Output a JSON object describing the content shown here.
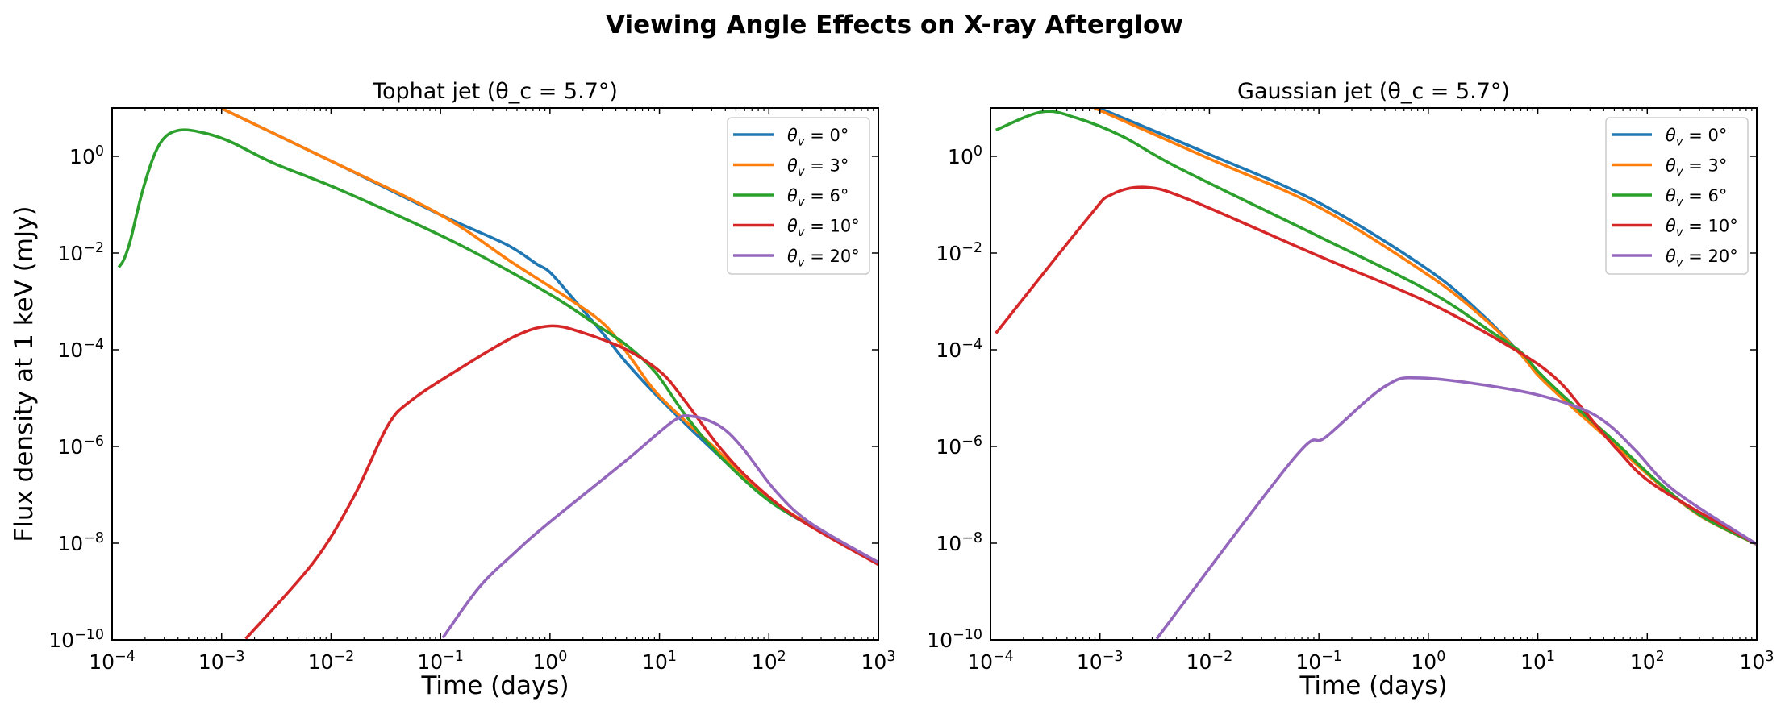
{
  "figure": {
    "title": "Viewing Angle Effects on X-ray Afterglow"
  },
  "chart_data": [
    {
      "type": "line",
      "title": "Tophat jet (θ_c = 5.7°)",
      "xlabel": "Time (days)",
      "ylabel": "Flux density at 1 keV (mJy)",
      "xscale": "log",
      "yscale": "log",
      "xlim": [
        0.0001,
        1000.0
      ],
      "ylim": [
        1e-10,
        10.0
      ],
      "x_tick_exponents": [
        -4,
        -3,
        -2,
        -1,
        0,
        1,
        2,
        3
      ],
      "y_tick_exponents": [
        -10,
        -8,
        -6,
        -4,
        -2,
        0
      ],
      "grid": false,
      "legend_position": "top-right",
      "series": [
        {
          "name": "θ_v = 0°",
          "color": "#1f77b4",
          "points": [
            [
              0.001,
              9.8
            ],
            [
              0.01,
              0.8
            ],
            [
              0.1,
              0.062
            ],
            [
              0.4,
              0.015
            ],
            [
              0.75,
              0.006
            ],
            [
              1.0,
              0.004
            ],
            [
              1.55,
              0.0013
            ],
            [
              3.2,
              0.00019
            ],
            [
              5.1,
              5.1e-05
            ],
            [
              10.5,
              8.9e-06
            ],
            [
              31,
              8.3e-07
            ],
            [
              100,
              7.6e-08
            ],
            [
              340,
              1.5e-08
            ],
            [
              1000,
              4e-09
            ]
          ]
        },
        {
          "name": "θ_v = 3°",
          "color": "#ff7f0e",
          "points": [
            [
              0.001,
              9.8
            ],
            [
              0.01,
              0.8
            ],
            [
              0.1,
              0.062
            ],
            [
              0.47,
              0.006
            ],
            [
              1.55,
              0.00107
            ],
            [
              3.2,
              0.00032
            ],
            [
              5.6,
              6.3e-05
            ],
            [
              10,
              1.1e-05
            ],
            [
              31,
              1e-06
            ],
            [
              100,
              8.5e-08
            ],
            [
              340,
              1.5e-08
            ],
            [
              1000,
              4e-09
            ]
          ]
        },
        {
          "name": "θ_v = 6°",
          "color": "#2ca02c",
          "points": [
            [
              0.000115,
              0.0051
            ],
            [
              0.000126,
              0.0068
            ],
            [
              0.000138,
              0.0115
            ],
            [
              0.00015,
              0.022
            ],
            [
              0.00019,
              0.195
            ],
            [
              0.000245,
              1.12
            ],
            [
              0.00031,
              2.6
            ],
            [
              0.00042,
              3.5
            ],
            [
              0.00063,
              3.2
            ],
            [
              0.00115,
              2.1
            ],
            [
              0.003,
              0.72
            ],
            [
              0.0126,
              0.195
            ],
            [
              0.14,
              0.016
            ],
            [
              0.95,
              0.0015
            ],
            [
              2.5,
              0.00036
            ],
            [
              5.1,
              0.00012
            ],
            [
              9.3,
              3.3e-05
            ],
            [
              17,
              4.7e-06
            ],
            [
              35,
              6.6e-07
            ],
            [
              100,
              7.6e-08
            ],
            [
              340,
              1.5e-08
            ],
            [
              1000,
              4e-09
            ]
          ]
        },
        {
          "name": "θ_v = 10°",
          "color": "#d62728",
          "points": [
            [
              0.00166,
              1.05e-10
            ],
            [
              0.0069,
              4e-09
            ],
            [
              0.0162,
              9.3e-08
            ],
            [
              0.033,
              2.7e-06
            ],
            [
              0.054,
              8.9e-06
            ],
            [
              0.14,
              3.7e-05
            ],
            [
              0.47,
              0.000186
            ],
            [
              1.0,
              0.00031
            ],
            [
              1.95,
              0.00023
            ],
            [
              5.1,
              9.8e-05
            ],
            [
              10.5,
              3.3e-05
            ],
            [
              17,
              8.9e-06
            ],
            [
              35,
              1e-06
            ],
            [
              71,
              1.8e-07
            ],
            [
              186,
              3.2e-08
            ],
            [
              1000,
              3.6e-09
            ]
          ]
        },
        {
          "name": "θ_v = 20°",
          "color": "#9467bd",
          "points": [
            [
              0.105,
              1.1e-10
            ],
            [
              0.224,
              1.2e-09
            ],
            [
              0.47,
              6.2e-09
            ],
            [
              0.95,
              2.5e-08
            ],
            [
              5.1,
              5.4e-07
            ],
            [
              13.5,
              3.4e-06
            ],
            [
              20,
              4.2e-06
            ],
            [
              35,
              2.7e-06
            ],
            [
              56,
              1e-06
            ],
            [
              115,
              1.2e-07
            ],
            [
              240,
              2.6e-08
            ],
            [
              1000,
              4e-09
            ]
          ]
        }
      ]
    },
    {
      "type": "line",
      "title": "Gaussian jet (θ_c = 5.7°)",
      "xlabel": "Time (days)",
      "ylabel": "",
      "xscale": "log",
      "yscale": "log",
      "xlim": [
        0.0001,
        1000.0
      ],
      "ylim": [
        1e-10,
        10.0
      ],
      "x_tick_exponents": [
        -4,
        -3,
        -2,
        -1,
        0,
        1,
        2,
        3
      ],
      "y_tick_exponents": [
        -10,
        -8,
        -6,
        -4,
        -2,
        0
      ],
      "grid": false,
      "legend_position": "top-right",
      "series": [
        {
          "name": "θ_v = 0°",
          "color": "#1f77b4",
          "points": [
            [
              0.001,
              9.8
            ],
            [
              0.01,
              1.1
            ],
            [
              0.1,
              0.11
            ],
            [
              1,
              0.0045
            ],
            [
              3.2,
              0.0005
            ],
            [
              7,
              8e-05
            ],
            [
              10,
              3.2e-05
            ],
            [
              18,
              8.9e-06
            ],
            [
              48,
              1.26e-06
            ],
            [
              123,
              1.8e-07
            ],
            [
              316,
              3.5e-08
            ],
            [
              1000,
              9.5e-09
            ]
          ]
        },
        {
          "name": "θ_v = 3°",
          "color": "#ff7f0e",
          "points": [
            [
              0.00089,
              10
            ],
            [
              0.01,
              0.89
            ],
            [
              0.1,
              0.089
            ],
            [
              1,
              0.0035
            ],
            [
              3.2,
              0.00045
            ],
            [
              7,
              8e-05
            ],
            [
              10,
              3e-05
            ],
            [
              18,
              8.5e-06
            ],
            [
              48,
              1.2e-06
            ],
            [
              123,
              1.8e-07
            ],
            [
              316,
              3.5e-08
            ],
            [
              1000,
              9.5e-09
            ]
          ]
        },
        {
          "name": "θ_v = 6°",
          "color": "#2ca02c",
          "points": [
            [
              0.000112,
              3.5
            ],
            [
              0.000295,
              8.3
            ],
            [
              0.0006,
              6.3
            ],
            [
              0.0016,
              2.6
            ],
            [
              0.0052,
              0.58
            ],
            [
              0.1,
              0.022
            ],
            [
              1,
              0.00166
            ],
            [
              3.8,
              0.00023
            ],
            [
              7,
              9e-05
            ],
            [
              10,
              3.6e-05
            ],
            [
              18,
              1e-05
            ],
            [
              48,
              1.4e-06
            ],
            [
              123,
              1.9e-07
            ],
            [
              316,
              3.6e-08
            ],
            [
              1000,
              9.5e-09
            ]
          ]
        },
        {
          "name": "θ_v = 10°",
          "color": "#d62728",
          "points": [
            [
              0.000112,
              0.00022
            ],
            [
              0.00078,
              0.054
            ],
            [
              0.00126,
              0.16
            ],
            [
              0.0026,
              0.23
            ],
            [
              0.0066,
              0.126
            ],
            [
              0.093,
              0.0093
            ],
            [
              1,
              0.00095
            ],
            [
              6.2,
              0.0001
            ],
            [
              14.5,
              2.6e-05
            ],
            [
              26,
              5.8e-06
            ],
            [
              54,
              8.3e-07
            ],
            [
              123,
              1.45e-07
            ],
            [
              1000,
              9.5e-09
            ]
          ]
        },
        {
          "name": "θ_v = 20°",
          "color": "#9467bd",
          "points": [
            [
              0.0033,
              1.05e-10
            ],
            [
              0.058,
              5.4e-07
            ],
            [
              0.117,
              1.6e-06
            ],
            [
              0.4,
              1.74e-05
            ],
            [
              0.9,
              2.6e-05
            ],
            [
              6.9,
              1.4e-05
            ],
            [
              23,
              6.5e-06
            ],
            [
              43,
              3e-06
            ],
            [
              78,
              8.3e-07
            ],
            [
              178,
              1.2e-07
            ],
            [
              1000,
              9.5e-09
            ]
          ]
        }
      ]
    }
  ]
}
